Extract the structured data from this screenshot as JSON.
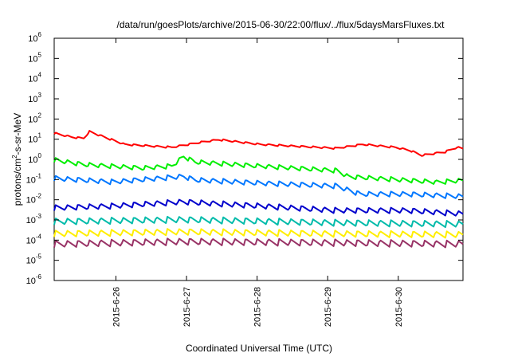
{
  "chart_data": {
    "type": "line",
    "title": "/data/run/goesPlots/archive/2015-06-30/22:00/flux/../flux/5daysMarsFluxes.txt",
    "xlabel": "Coordinated Universal Time (UTC)",
    "ylabel": {
      "pre": "protons/cm",
      "sup": "2",
      "post": "-s-sr-MeV"
    },
    "yscale": "log",
    "ylim": [
      1e-06,
      1000000.0
    ],
    "yticks": [
      {
        "base": "10",
        "exp": "-6"
      },
      {
        "base": "10",
        "exp": "-5"
      },
      {
        "base": "10",
        "exp": "-4"
      },
      {
        "base": "10",
        "exp": "-3"
      },
      {
        "base": "10",
        "exp": "-2"
      },
      {
        "base": "10",
        "exp": "-1"
      },
      {
        "base": "10",
        "exp": "0"
      },
      {
        "base": "10",
        "exp": "1"
      },
      {
        "base": "10",
        "exp": "2"
      },
      {
        "base": "10",
        "exp": "3"
      },
      {
        "base": "10",
        "exp": "4"
      },
      {
        "base": "10",
        "exp": "5"
      },
      {
        "base": "10",
        "exp": "6"
      }
    ],
    "xlim": [
      "2015-06-25 03:00",
      "2015-06-30 22:00"
    ],
    "xticks": [
      "2015-6-26",
      "2015-6-27",
      "2015-6-28",
      "2015-6-29",
      "2015-6-30"
    ],
    "grid": false,
    "legend": "none",
    "series": [
      {
        "color": "#ff0000",
        "base": 8,
        "amp": 0.9,
        "start": 25,
        "trend": [
          [
            0,
            25
          ],
          [
            6,
            16
          ],
          [
            10,
            14
          ],
          [
            12,
            30
          ],
          [
            24,
            7
          ],
          [
            40,
            5
          ],
          [
            50,
            9
          ],
          [
            56,
            12
          ],
          [
            70,
            7
          ],
          [
            96,
            4.5
          ],
          [
            105,
            7
          ],
          [
            116,
            5
          ],
          [
            121,
            3.5
          ],
          [
            125,
            2
          ],
          [
            133,
            3
          ],
          [
            137,
            5
          ],
          [
            140,
            4
          ]
        ]
      },
      {
        "color": "#00ee00",
        "base": 0.8,
        "amp": 1.1,
        "start": 1.0,
        "trend": [
          [
            0,
            1.0
          ],
          [
            10,
            0.6
          ],
          [
            30,
            0.4
          ],
          [
            40,
            0.5
          ],
          [
            44,
            1.5
          ],
          [
            48,
            0.8
          ],
          [
            70,
            0.5
          ],
          [
            96,
            0.3
          ],
          [
            100,
            0.15
          ],
          [
            120,
            0.1
          ],
          [
            130,
            0.08
          ],
          [
            140,
            0.1
          ]
        ]
      },
      {
        "color": "#0077ff",
        "base": 0.1,
        "amp": 1.2,
        "start": 0.12,
        "trend": [
          [
            0,
            0.12
          ],
          [
            20,
            0.08
          ],
          [
            44,
            0.15
          ],
          [
            48,
            0.1
          ],
          [
            70,
            0.07
          ],
          [
            96,
            0.05
          ],
          [
            104,
            0.02
          ],
          [
            120,
            0.02
          ],
          [
            140,
            0.015
          ]
        ]
      },
      {
        "color": "#0000cc",
        "base": 0.004,
        "amp": 1.3,
        "start": 0.004,
        "trend": [
          [
            0,
            0.004
          ],
          [
            20,
            0.005
          ],
          [
            44,
            0.008
          ],
          [
            70,
            0.005
          ],
          [
            96,
            0.003
          ],
          [
            120,
            0.003
          ],
          [
            140,
            0.002
          ]
        ]
      },
      {
        "color": "#00bbaa",
        "base": 0.0004,
        "amp": 1.5,
        "start": 0.0008,
        "trend": [
          [
            0,
            0.0008
          ],
          [
            44,
            0.001
          ],
          [
            96,
            0.0007
          ],
          [
            140,
            0.0006
          ]
        ]
      },
      {
        "color": "#ffee00",
        "base": 0.00012,
        "amp": 1.5,
        "start": 0.0002,
        "trend": [
          [
            0,
            0.0002
          ],
          [
            44,
            0.00025
          ],
          [
            96,
            0.0002
          ],
          [
            140,
            0.00018
          ]
        ]
      },
      {
        "color": "#993366",
        "base": 4e-05,
        "amp": 1.6,
        "start": 6e-05,
        "trend": [
          [
            0,
            6e-05
          ],
          [
            44,
            8e-05
          ],
          [
            96,
            7e-05
          ],
          [
            140,
            6e-05
          ]
        ]
      }
    ]
  }
}
